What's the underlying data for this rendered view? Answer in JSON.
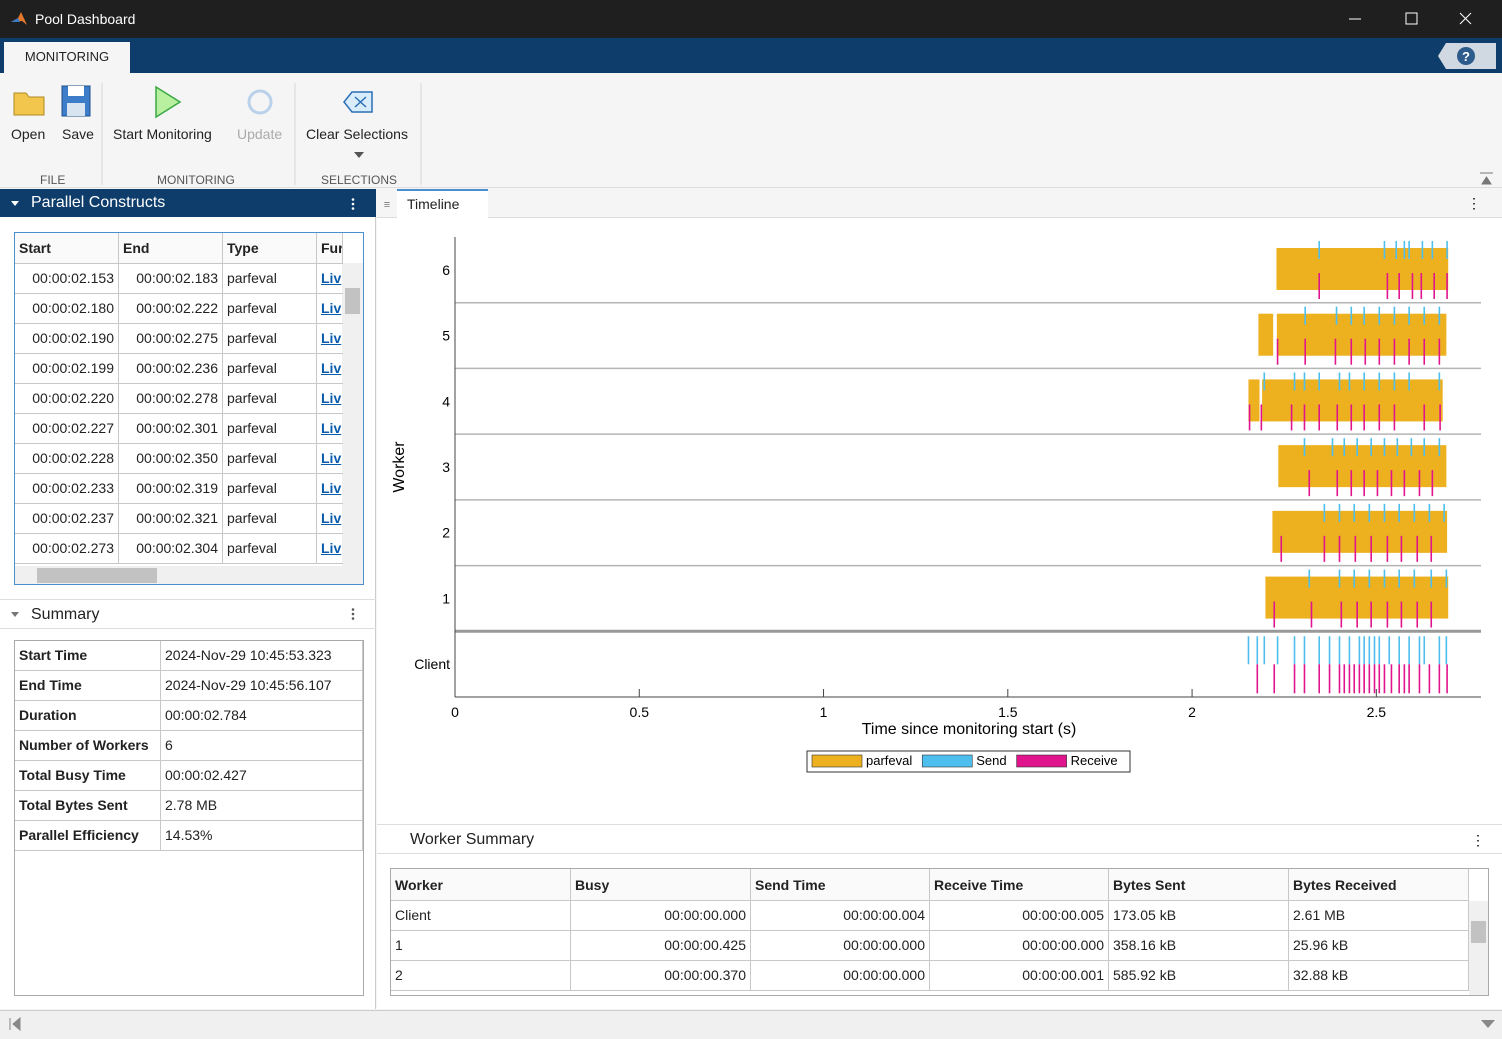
{
  "window": {
    "title": "Pool Dashboard"
  },
  "toolstrip": {
    "tab": "MONITORING",
    "buttons": {
      "open": "Open",
      "save": "Save",
      "start": "Start Monitoring",
      "update": "Update",
      "clear": "Clear Selections"
    },
    "groups": {
      "file": "FILE",
      "monitoring": "MONITORING",
      "selections": "SELECTIONS"
    }
  },
  "parallel_constructs": {
    "title": "Parallel Constructs",
    "columns": [
      "Start",
      "End",
      "Type",
      "Fur"
    ],
    "rows": [
      [
        "00:00:02.153",
        "00:00:02.183",
        "parfeval",
        "Liv"
      ],
      [
        "00:00:02.180",
        "00:00:02.222",
        "parfeval",
        "Liv"
      ],
      [
        "00:00:02.190",
        "00:00:02.275",
        "parfeval",
        "Liv"
      ],
      [
        "00:00:02.199",
        "00:00:02.236",
        "parfeval",
        "Liv"
      ],
      [
        "00:00:02.220",
        "00:00:02.278",
        "parfeval",
        "Liv"
      ],
      [
        "00:00:02.227",
        "00:00:02.301",
        "parfeval",
        "Liv"
      ],
      [
        "00:00:02.228",
        "00:00:02.350",
        "parfeval",
        "Liv"
      ],
      [
        "00:00:02.233",
        "00:00:02.319",
        "parfeval",
        "Liv"
      ],
      [
        "00:00:02.237",
        "00:00:02.321",
        "parfeval",
        "Liv"
      ],
      [
        "00:00:02.273",
        "00:00:02.304",
        "parfeval",
        "Liv"
      ]
    ]
  },
  "summary": {
    "title": "Summary",
    "rows": [
      [
        "Start Time",
        "2024-Nov-29 10:45:53.323"
      ],
      [
        "End Time",
        "2024-Nov-29 10:45:56.107"
      ],
      [
        "Duration",
        "00:00:02.784"
      ],
      [
        "Number of Workers",
        "6"
      ],
      [
        "Total Busy Time",
        "00:00:02.427"
      ],
      [
        "Total Bytes Sent",
        "2.78 MB"
      ],
      [
        "Parallel Efficiency",
        "14.53%"
      ]
    ]
  },
  "timeline": {
    "tab": "Timeline"
  },
  "chart_data": {
    "type": "timeline",
    "x_label": "Time since monitoring start (s)",
    "y_label": "Worker",
    "categories": [
      "Client",
      "1",
      "2",
      "3",
      "4",
      "5",
      "6"
    ],
    "xlim": [
      0,
      2.784
    ],
    "xticks": [
      0,
      0.5,
      1,
      1.5,
      2,
      2.5
    ],
    "series": [
      {
        "name": "parfeval",
        "color": "#edb120",
        "values": [
          [],
          [
            [
              2.199,
              2.695
            ]
          ],
          [
            [
              2.218,
              2.692
            ]
          ],
          [
            [
              2.234,
              2.69
            ]
          ],
          [
            [
              2.153,
              2.183
            ],
            [
              2.19,
              2.68
            ]
          ],
          [
            [
              2.18,
              2.22
            ],
            [
              2.23,
              2.69
            ]
          ],
          [
            [
              2.229,
              2.695
            ]
          ]
        ]
      },
      {
        "name": "Send",
        "color": "#4dbeee",
        "values": [
          [
            2.153,
            2.177,
            2.196,
            2.232,
            2.278,
            2.305,
            2.345,
            2.373,
            2.4,
            2.427,
            2.454,
            2.467,
            2.481,
            2.495,
            2.508,
            2.535,
            2.562,
            2.589,
            2.617,
            2.63,
            2.671,
            2.69
          ],
          [
            2.318,
            2.4,
            2.44,
            2.481,
            2.522,
            2.562,
            2.603,
            2.649,
            2.69
          ],
          [
            2.359,
            2.4,
            2.44,
            2.481,
            2.522,
            2.562,
            2.603,
            2.644,
            2.684
          ],
          [
            2.305,
            2.381,
            2.413,
            2.448,
            2.486,
            2.522,
            2.557,
            2.595,
            2.63,
            2.671
          ],
          [
            2.196,
            2.278,
            2.305,
            2.345,
            2.4,
            2.427,
            2.467,
            2.508,
            2.549,
            2.589,
            2.671
          ],
          [
            2.307,
            2.392,
            2.432,
            2.467,
            2.508,
            2.549,
            2.589,
            2.63,
            2.671
          ],
          [
            2.345,
            2.522,
            2.554,
            2.576,
            2.589,
            2.625,
            2.652,
            2.692
          ]
        ]
      },
      {
        "name": "Receive",
        "color": "#e0148c",
        "values": [
          [
            2.177,
            2.223,
            2.278,
            2.305,
            2.345,
            2.373,
            2.4,
            2.413,
            2.427,
            2.44,
            2.454,
            2.467,
            2.481,
            2.495,
            2.508,
            2.522,
            2.541,
            2.562,
            2.576,
            2.589,
            2.617,
            2.644,
            2.671,
            2.692
          ],
          [
            2.223,
            2.324,
            2.405,
            2.448,
            2.486,
            2.53,
            2.568,
            2.611,
            2.649
          ],
          [
            2.242,
            2.359,
            2.4,
            2.443,
            2.486,
            2.53,
            2.568,
            2.611,
            2.649
          ],
          [
            2.318,
            2.394,
            2.432,
            2.467,
            2.503,
            2.541,
            2.576,
            2.617,
            2.652
          ],
          [
            2.156,
            2.188,
            2.27,
            2.305,
            2.345,
            2.394,
            2.432,
            2.467,
            2.508,
            2.549,
            2.63,
            2.673
          ],
          [
            2.232,
            2.307,
            2.389,
            2.432,
            2.47,
            2.508,
            2.549,
            2.589,
            2.63,
            2.671
          ],
          [
            2.345,
            2.53,
            2.562,
            2.598,
            2.622,
            2.657,
            2.692
          ]
        ]
      }
    ]
  },
  "worker_summary": {
    "title": "Worker Summary",
    "columns": [
      "Worker",
      "Busy",
      "Send Time",
      "Receive Time",
      "Bytes Sent",
      "Bytes Received"
    ],
    "rows": [
      [
        "Client",
        "00:00:00.000",
        "00:00:00.004",
        "00:00:00.005",
        "173.05 kB",
        "2.61 MB"
      ],
      [
        "1",
        "00:00:00.425",
        "00:00:00.000",
        "00:00:00.000",
        "358.16 kB",
        "25.96 kB"
      ],
      [
        "2",
        "00:00:00.370",
        "00:00:00.000",
        "00:00:00.001",
        "585.92 kB",
        "32.88 kB"
      ]
    ]
  }
}
